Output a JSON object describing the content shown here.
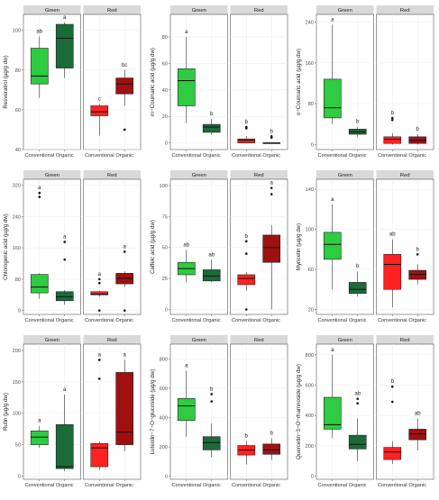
{
  "figure": {
    "colors": {
      "green_conv": "#2ecc40",
      "green_org": "#1a6b38",
      "red_conv": "#ff2222",
      "red_org": "#a01010",
      "panel_bg": "#ffffff",
      "strip_bg": "#d9d9d9",
      "grid": "#ebebeb"
    }
  },
  "chart_data": [
    {
      "type": "boxplot",
      "ylabel": "Resveratrol (µg/g dw)",
      "ylim": [
        40,
        108
      ],
      "yticks": [
        40,
        60,
        80,
        100
      ],
      "facets": [
        "Green",
        "Red"
      ],
      "categories": [
        "Conventional",
        "Organic"
      ],
      "boxes": [
        {
          "facet": "Green",
          "x": "Conventional",
          "min": 66,
          "q1": 73,
          "median": 77,
          "q3": 91,
          "max": 97,
          "outliers": [],
          "letter": "ab"
        },
        {
          "facet": "Green",
          "x": "Organic",
          "min": 76,
          "q1": 81,
          "median": 96,
          "q3": 103,
          "max": 104,
          "outliers": [],
          "letter": "a"
        },
        {
          "facet": "Red",
          "x": "Conventional",
          "min": 47,
          "q1": 57,
          "median": 59,
          "q3": 62,
          "max": 63,
          "outliers": [],
          "letter": "c"
        },
        {
          "facet": "Red",
          "x": "Organic",
          "min": 62,
          "q1": 68,
          "median": 73,
          "q3": 76,
          "max": 80,
          "outliers": [
            50
          ],
          "letter": "bc"
        }
      ]
    },
    {
      "type": "boxplot",
      "ylabel": "m−Coumaric acid (µg/g dw)",
      "ylim": [
        -5,
        97
      ],
      "yticks": [
        0,
        20,
        40,
        60,
        80
      ],
      "facets": [
        "Green",
        "Red"
      ],
      "categories": [
        "Conventional",
        "Organic"
      ],
      "boxes": [
        {
          "facet": "Green",
          "x": "Conventional",
          "min": 15,
          "q1": 28,
          "median": 47,
          "q3": 56,
          "max": 80,
          "outliers": [],
          "letter": "a"
        },
        {
          "facet": "Green",
          "x": "Organic",
          "min": 6,
          "q1": 8,
          "median": 12,
          "q3": 14,
          "max": 18,
          "outliers": [],
          "letter": "b"
        },
        {
          "facet": "Red",
          "x": "Conventional",
          "min": 0,
          "q1": 0,
          "median": 2,
          "q3": 3,
          "max": 5,
          "outliers": [
            12,
            11
          ],
          "letter": "b"
        },
        {
          "facet": "Red",
          "x": "Organic",
          "min": 0,
          "q1": 0,
          "median": 0,
          "q3": 0,
          "max": 0,
          "outliers": [
            5,
            4
          ],
          "letter": "b"
        }
      ]
    },
    {
      "type": "boxplot",
      "ylabel": "o−Coumaric acid (µg/g dw)",
      "ylim": [
        -10,
        255
      ],
      "yticks": [
        0,
        80,
        160,
        240
      ],
      "facets": [
        "Green",
        "Red"
      ],
      "categories": [
        "Conventional",
        "Organic"
      ],
      "boxes": [
        {
          "facet": "Green",
          "x": "Conventional",
          "min": 40,
          "q1": 52,
          "median": 72,
          "q3": 128,
          "max": 235,
          "outliers": [],
          "letter": "a"
        },
        {
          "facet": "Green",
          "x": "Organic",
          "min": 15,
          "q1": 20,
          "median": 25,
          "q3": 30,
          "max": 35,
          "outliers": [],
          "letter": "b"
        },
        {
          "facet": "Red",
          "x": "Conventional",
          "min": 0,
          "q1": 2,
          "median": 10,
          "q3": 15,
          "max": 22,
          "outliers": [
            52,
            48
          ],
          "letter": "b"
        },
        {
          "facet": "Red",
          "x": "Organic",
          "min": 0,
          "q1": 2,
          "median": 8,
          "q3": 15,
          "max": 20,
          "outliers": [],
          "letter": "b"
        }
      ]
    },
    {
      "type": "boxplot",
      "ylabel": "Chlorogenic acid (µg/g dw)",
      "ylim": [
        -10,
        335
      ],
      "yticks": [
        0,
        80,
        160,
        240,
        320
      ],
      "facets": [
        "Green",
        "Red"
      ],
      "categories": [
        "Conventional",
        "Organic"
      ],
      "boxes": [
        {
          "facet": "Green",
          "x": "Conventional",
          "min": 30,
          "q1": 45,
          "median": 60,
          "q3": 92,
          "max": 95,
          "outliers": [
            300,
            290
          ],
          "letter": "a"
        },
        {
          "facet": "Green",
          "x": "Organic",
          "min": 15,
          "q1": 25,
          "median": 35,
          "q3": 48,
          "max": 52,
          "outliers": [
            175,
            130
          ],
          "letter": "a"
        },
        {
          "facet": "Red",
          "x": "Conventional",
          "min": 35,
          "q1": 40,
          "median": 42,
          "q3": 48,
          "max": 50,
          "outliers": [
            80,
            70,
            0
          ],
          "letter": "a"
        },
        {
          "facet": "Red",
          "x": "Organic",
          "min": 60,
          "q1": 68,
          "median": 82,
          "q3": 95,
          "max": 100,
          "outliers": [
            150,
            0
          ],
          "letter": "a"
        }
      ]
    },
    {
      "type": "boxplot",
      "ylabel": "Caffeic acid (µg/g dw)",
      "ylim": [
        -4,
        105
      ],
      "yticks": [
        0,
        25,
        50,
        75,
        100
      ],
      "facets": [
        "Green",
        "Red"
      ],
      "categories": [
        "Conventional",
        "Organic"
      ],
      "boxes": [
        {
          "facet": "Green",
          "x": "Conventional",
          "min": 22,
          "q1": 28,
          "median": 33,
          "q3": 38,
          "max": 48,
          "outliers": [],
          "letter": "ab"
        },
        {
          "facet": "Green",
          "x": "Organic",
          "min": 22,
          "q1": 23,
          "median": 27,
          "q3": 32,
          "max": 40,
          "outliers": [],
          "letter": "ab"
        },
        {
          "facet": "Red",
          "x": "Conventional",
          "min": 15,
          "q1": 20,
          "median": 25,
          "q3": 28,
          "max": 30,
          "outliers": [
            55,
            45,
            0
          ],
          "letter": "b"
        },
        {
          "facet": "Red",
          "x": "Organic",
          "min": 0,
          "q1": 38,
          "median": 50,
          "q3": 60,
          "max": 68,
          "outliers": [
            98,
            93
          ],
          "letter": "a"
        }
      ]
    },
    {
      "type": "boxplot",
      "ylabel": "Myricetin (µg/g dw)",
      "ylim": [
        15,
        150
      ],
      "yticks": [
        20,
        60,
        100,
        140
      ],
      "facets": [
        "Green",
        "Red"
      ],
      "categories": [
        "Conventional",
        "Organic"
      ],
      "boxes": [
        {
          "facet": "Green",
          "x": "Conventional",
          "min": 40,
          "q1": 70,
          "median": 85,
          "q3": 97,
          "max": 125,
          "outliers": [],
          "letter": "a"
        },
        {
          "facet": "Green",
          "x": "Organic",
          "min": 33,
          "q1": 36,
          "median": 40,
          "q3": 47,
          "max": 58,
          "outliers": [],
          "letter": "b"
        },
        {
          "facet": "Red",
          "x": "Conventional",
          "min": 22,
          "q1": 40,
          "median": 65,
          "q3": 75,
          "max": 90,
          "outliers": [],
          "letter": "ab"
        },
        {
          "facet": "Red",
          "x": "Organic",
          "min": 45,
          "q1": 50,
          "median": 55,
          "q3": 59,
          "max": 65,
          "outliers": [
            75
          ],
          "letter": "b"
        }
      ]
    },
    {
      "type": "boxplot",
      "ylabel": "Rutin (µg/g dw)",
      "ylim": [
        -5,
        210
      ],
      "yticks": [
        0,
        50,
        100,
        150,
        200
      ],
      "facets": [
        "Green",
        "Red"
      ],
      "categories": [
        "Conventional",
        "Organic"
      ],
      "boxes": [
        {
          "facet": "Green",
          "x": "Conventional",
          "min": 45,
          "q1": 50,
          "median": 62,
          "q3": 72,
          "max": 80,
          "outliers": [],
          "letter": "a"
        },
        {
          "facet": "Green",
          "x": "Organic",
          "min": 8,
          "q1": 12,
          "median": 15,
          "q3": 82,
          "max": 130,
          "outliers": [],
          "letter": "a"
        },
        {
          "facet": "Red",
          "x": "Conventional",
          "min": 10,
          "q1": 15,
          "median": 45,
          "q3": 52,
          "max": 55,
          "outliers": [
            185,
            155
          ],
          "letter": "a"
        },
        {
          "facet": "Red",
          "x": "Organic",
          "min": 40,
          "q1": 50,
          "median": 70,
          "q3": 165,
          "max": 185,
          "outliers": [],
          "letter": "a"
        }
      ]
    },
    {
      "type": "boxplot",
      "ylabel": "Luteolin−7−O−glucoside (µg/g dw)",
      "ylim": [
        -20,
        900
      ],
      "yticks": [
        0,
        200,
        400,
        600,
        800
      ],
      "facets": [
        "Green",
        "Red"
      ],
      "categories": [
        "Conventional",
        "Organic"
      ],
      "boxes": [
        {
          "facet": "Green",
          "x": "Conventional",
          "min": 270,
          "q1": 380,
          "median": 480,
          "q3": 530,
          "max": 720,
          "outliers": [],
          "letter": "a"
        },
        {
          "facet": "Green",
          "x": "Organic",
          "min": 130,
          "q1": 180,
          "median": 230,
          "q3": 270,
          "max": 360,
          "outliers": [
            560,
            510
          ],
          "letter": "b"
        },
        {
          "facet": "Red",
          "x": "Conventional",
          "min": 80,
          "q1": 145,
          "median": 180,
          "q3": 210,
          "max": 240,
          "outliers": [],
          "letter": "b"
        },
        {
          "facet": "Red",
          "x": "Organic",
          "min": 110,
          "q1": 150,
          "median": 180,
          "q3": 220,
          "max": 260,
          "outliers": [],
          "letter": "b"
        }
      ]
    },
    {
      "type": "boxplot",
      "ylabel": "Quercetin−3−O−rhamnoside (µg/g dw)",
      "ylim": [
        -20,
        870
      ],
      "yticks": [
        0,
        200,
        400,
        600,
        800
      ],
      "facets": [
        "Green",
        "Red"
      ],
      "categories": [
        "Conventional",
        "Organic"
      ],
      "boxes": [
        {
          "facet": "Green",
          "x": "Conventional",
          "min": 250,
          "q1": 310,
          "median": 340,
          "q3": 520,
          "max": 800,
          "outliers": [],
          "letter": "a"
        },
        {
          "facet": "Green",
          "x": "Organic",
          "min": 100,
          "q1": 180,
          "median": 210,
          "q3": 270,
          "max": 380,
          "outliers": [
            510,
            480
          ],
          "letter": "ab"
        },
        {
          "facet": "Red",
          "x": "Conventional",
          "min": 80,
          "q1": 110,
          "median": 160,
          "q3": 190,
          "max": 230,
          "outliers": [
            590,
            490
          ],
          "letter": "b"
        },
        {
          "facet": "Red",
          "x": "Organic",
          "min": 170,
          "q1": 240,
          "median": 280,
          "q3": 310,
          "max": 380,
          "outliers": [],
          "letter": "ab"
        }
      ]
    }
  ]
}
